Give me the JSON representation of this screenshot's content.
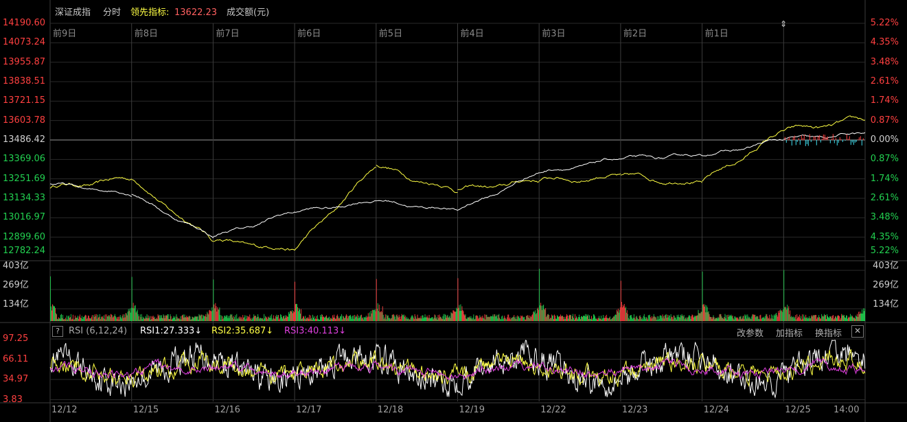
{
  "header": {
    "index_name": "深证成指",
    "mode": "分时",
    "leading_indicator_label": "领先指标:",
    "leading_indicator_value": "13622.23",
    "volume_label": "成交额(元)"
  },
  "price_axis": {
    "left_labels": [
      "14190.60",
      "14073.24",
      "13955.87",
      "13838.51",
      "13721.15",
      "13603.78",
      "13486.42",
      "13369.06",
      "13251.69",
      "13134.33",
      "13016.97",
      "12899.60",
      "12782.24"
    ],
    "right_labels": [
      "5.22%",
      "4.35%",
      "3.48%",
      "2.61%",
      "1.74%",
      "0.87%",
      "0.00%",
      "0.87%",
      "1.74%",
      "2.61%",
      "3.48%",
      "4.35%",
      "5.22%"
    ],
    "pre_close": 13486.42,
    "max": 14190.6,
    "min": 12782.24
  },
  "day_labels": [
    "前9日",
    "前8日",
    "前7日",
    "前6日",
    "前5日",
    "前4日",
    "前3日",
    "前2日",
    "前1日"
  ],
  "date_labels": [
    "12/12",
    "12/15",
    "12/16",
    "12/17",
    "12/18",
    "12/19",
    "12/22",
    "12/23",
    "12/24",
    "12/25",
    "14:00"
  ],
  "volume_axis": {
    "left_labels": [
      "403亿",
      "269亿",
      "134亿"
    ],
    "right_labels": [
      "403亿",
      "269亿",
      "134亿"
    ],
    "max": 403
  },
  "rsi": {
    "question": "?",
    "title": "RSI (6,12,24)",
    "rsi1": "RSI1:27.333↓",
    "rsi2": "RSI2:35.687↓",
    "rsi3": "RSI3:40.113↓",
    "axis_labels": [
      "97.25",
      "66.11",
      "34.97",
      "3.83"
    ],
    "tools": [
      "改参数",
      "加指标",
      "换指标"
    ],
    "close": "✕"
  },
  "colors": {
    "background": "#000000",
    "grid": "#2a2a2a",
    "divider": "#3c3c3c",
    "up": "#ff4040",
    "down": "#22d050",
    "white_line": "#ffffff",
    "yellow_line": "#ffff44",
    "magenta": "#e040e0",
    "cyan": "#40e0f0",
    "header_gray": "#c8c8c8",
    "header_yellow": "#ffff44"
  },
  "chart_data": {
    "type": "line",
    "title": "深证成指",
    "ylim": [
      12782.24,
      14190.6
    ],
    "days": 10,
    "white_day_close": [
      13220,
      13160,
      12900,
      13050,
      13120,
      13060,
      13290,
      13370,
      13390,
      13486,
      13520
    ],
    "yellow_day_close": [
      13200,
      13250,
      12880,
      12820,
      13330,
      13180,
      13240,
      13270,
      13230,
      13540,
      13600
    ],
    "rsi_range": [
      3.83,
      97.25
    ]
  }
}
